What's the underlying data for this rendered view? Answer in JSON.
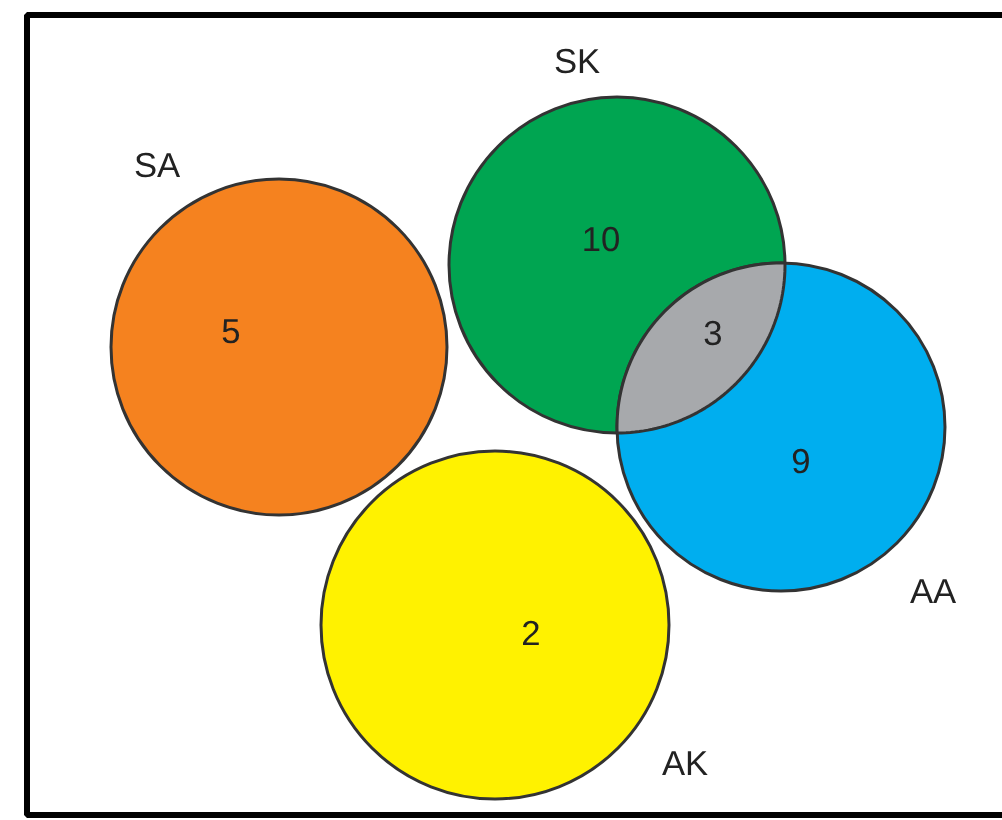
{
  "chart_data": {
    "type": "other",
    "categories": [
      "SA",
      "SK",
      "AA",
      "AK"
    ],
    "values": [
      5,
      10,
      9,
      2
    ],
    "colors": [
      "#f5821f",
      "#00a551",
      "#00aeef",
      "#fff200"
    ],
    "annotations": [
      "3"
    ],
    "data_labels": true
  }
}
